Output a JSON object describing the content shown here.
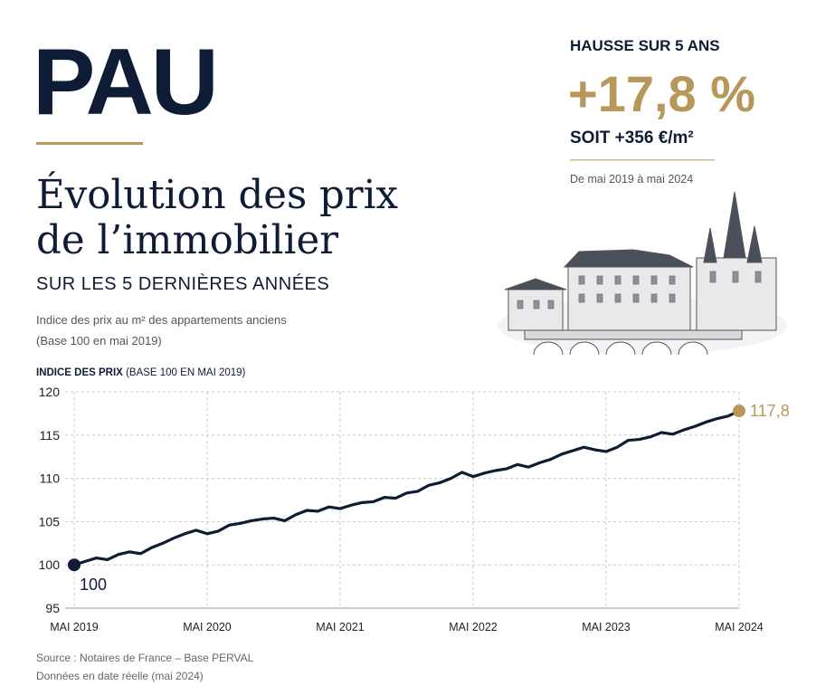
{
  "header": {
    "title": "PAU",
    "heading_line1": "Évolution des prix",
    "heading_line2": "de l’immobilier",
    "subheading": "SUR LES 5 DERNIÈRES ANNÉES",
    "description_line1": "Indice des prix au m² des appartements anciens",
    "description_line2": "(Base 100 en mai 2019)"
  },
  "highlight": {
    "label": "HAUSSE SUR 5 ANS",
    "value": "+17,8 %",
    "detail": "SOIT +356 €/m²",
    "period": "De mai 2019 à mai 2024"
  },
  "chart_data": {
    "type": "line",
    "y_label": "INDICE DES PRIX",
    "y_label_note": "(BASE 100 EN MAI 2019)",
    "x": [
      "2019-05",
      "2019-06",
      "2019-07",
      "2019-08",
      "2019-09",
      "2019-10",
      "2019-11",
      "2019-12",
      "2020-01",
      "2020-02",
      "2020-03",
      "2020-04",
      "2020-05",
      "2020-06",
      "2020-07",
      "2020-08",
      "2020-09",
      "2020-10",
      "2020-11",
      "2020-12",
      "2021-01",
      "2021-02",
      "2021-03",
      "2021-04",
      "2021-05",
      "2021-06",
      "2021-07",
      "2021-08",
      "2021-09",
      "2021-10",
      "2021-11",
      "2021-12",
      "2022-01",
      "2022-02",
      "2022-03",
      "2022-04",
      "2022-05",
      "2022-06",
      "2022-07",
      "2022-08",
      "2022-09",
      "2022-10",
      "2022-11",
      "2022-12",
      "2023-01",
      "2023-02",
      "2023-03",
      "2023-04",
      "2023-05",
      "2023-06",
      "2023-07",
      "2023-08",
      "2023-09",
      "2023-10",
      "2023-11",
      "2023-12",
      "2024-01",
      "2024-02",
      "2024-03",
      "2024-04",
      "2024-05"
    ],
    "series": [
      {
        "name": "Indice des prix",
        "color": "#0f1c35",
        "highlight_color": "#b8975a",
        "values": [
          100,
          100.4,
          100.8,
          100.6,
          101.2,
          101.5,
          101.3,
          102.0,
          102.5,
          103.1,
          103.6,
          104.0,
          103.6,
          103.9,
          104.6,
          104.8,
          105.1,
          105.3,
          105.4,
          105.1,
          105.8,
          106.3,
          106.2,
          106.7,
          106.5,
          106.9,
          107.2,
          107.3,
          107.8,
          107.7,
          108.3,
          108.5,
          109.2,
          109.5,
          110.0,
          110.7,
          110.2,
          110.6,
          110.9,
          111.1,
          111.6,
          111.3,
          111.8,
          112.2,
          112.8,
          113.2,
          113.6,
          113.3,
          113.1,
          113.6,
          114.4,
          114.5,
          114.8,
          115.3,
          115.1,
          115.6,
          116.0,
          116.5,
          116.9,
          117.2,
          117.8
        ],
        "value_labels": [
          "100",
          null,
          null,
          null,
          null,
          null,
          null,
          null,
          null,
          null,
          null,
          null,
          null,
          null,
          null,
          null,
          null,
          null,
          null,
          null,
          null,
          null,
          null,
          null,
          null,
          null,
          null,
          null,
          null,
          null,
          null,
          null,
          null,
          null,
          null,
          null,
          null,
          null,
          null,
          null,
          null,
          null,
          null,
          null,
          null,
          null,
          null,
          null,
          null,
          null,
          null,
          null,
          null,
          null,
          null,
          null,
          null,
          null,
          null,
          null,
          "117,8"
        ]
      }
    ],
    "xlim": [
      "2019-05",
      "2024-05"
    ],
    "xticks": [
      {
        "value": "2019-05",
        "label": "MAI 2019"
      },
      {
        "value": "2020-05",
        "label": "MAI 2020"
      },
      {
        "value": "2021-05",
        "label": "MAI 2021"
      },
      {
        "value": "2022-05",
        "label": "MAI 2022"
      },
      {
        "value": "2023-05",
        "label": "MAI 2023"
      },
      {
        "value": "2024-05",
        "label": "MAI 2024"
      }
    ],
    "ylim": [
      95,
      120
    ],
    "yticks": [
      95,
      100,
      105,
      110,
      115,
      120
    ],
    "grid": true
  },
  "footer": {
    "source": "Source : Notaires de France – Base PERVAL",
    "note": "Données en date réelle (mai 2024)"
  }
}
